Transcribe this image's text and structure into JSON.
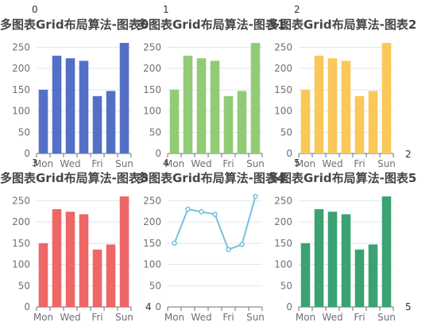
{
  "chart_data": [
    {
      "type": "bar",
      "index_label": "0",
      "title": "多图表Grid布局算法-图表0",
      "categories": [
        "Mon",
        "Tue",
        "Wed",
        "Thu",
        "Fri",
        "Sat",
        "Sun"
      ],
      "values": [
        150,
        230,
        224,
        218,
        135,
        147,
        260
      ],
      "y_ticks": [
        0,
        50,
        100,
        150,
        200,
        250
      ],
      "ylim": [
        0,
        260
      ],
      "color": "#5470c6",
      "grid": true
    },
    {
      "type": "bar",
      "index_label": "1",
      "title": "多图表Grid布局算法-图表1",
      "categories": [
        "Mon",
        "Tue",
        "Wed",
        "Thu",
        "Fri",
        "Sat",
        "Sun"
      ],
      "values": [
        150,
        230,
        224,
        218,
        135,
        147,
        260
      ],
      "y_ticks": [
        0,
        50,
        100,
        150,
        200,
        250
      ],
      "ylim": [
        0,
        260
      ],
      "color": "#91cc75",
      "grid": true
    },
    {
      "type": "bar",
      "index_label": "2",
      "title": "多图表Grid布局算法-图表2",
      "categories": [
        "Mon",
        "Tue",
        "Wed",
        "Thu",
        "Fri",
        "Sat",
        "Sun"
      ],
      "values": [
        150,
        230,
        224,
        218,
        135,
        147,
        260
      ],
      "y_ticks": [
        0,
        50,
        100,
        150,
        200,
        250
      ],
      "ylim": [
        0,
        260
      ],
      "color": "#fac858",
      "grid": true
    },
    {
      "type": "bar",
      "index_label": "3",
      "title": "多图表Grid布局算法-图表3",
      "categories": [
        "Mon",
        "Tue",
        "Wed",
        "Thu",
        "Fri",
        "Sat",
        "Sun"
      ],
      "values": [
        150,
        230,
        224,
        218,
        135,
        147,
        260
      ],
      "y_ticks": [
        0,
        50,
        100,
        150,
        200,
        250
      ],
      "ylim": [
        0,
        260
      ],
      "color": "#ee6666",
      "grid": true
    },
    {
      "type": "line",
      "index_label": "4",
      "title": "多图表Grid布局算法-图表4",
      "categories": [
        "Mon",
        "Tue",
        "Wed",
        "Thu",
        "Fri",
        "Sat",
        "Sun"
      ],
      "values": [
        150,
        230,
        224,
        218,
        135,
        147,
        260
      ],
      "y_ticks": [
        0,
        50,
        100,
        150,
        200,
        250
      ],
      "ylim": [
        0,
        260
      ],
      "color": "#73c0de",
      "grid": true
    },
    {
      "type": "bar",
      "index_label": "5",
      "title": "多图表Grid布局算法-图表5",
      "categories": [
        "Mon",
        "Tue",
        "Wed",
        "Thu",
        "Fri",
        "Sat",
        "Sun"
      ],
      "values": [
        150,
        230,
        224,
        218,
        135,
        147,
        260
      ],
      "y_ticks": [
        0,
        50,
        100,
        150,
        200,
        250
      ],
      "ylim": [
        0,
        260
      ],
      "color": "#3ba272",
      "grid": true
    }
  ]
}
